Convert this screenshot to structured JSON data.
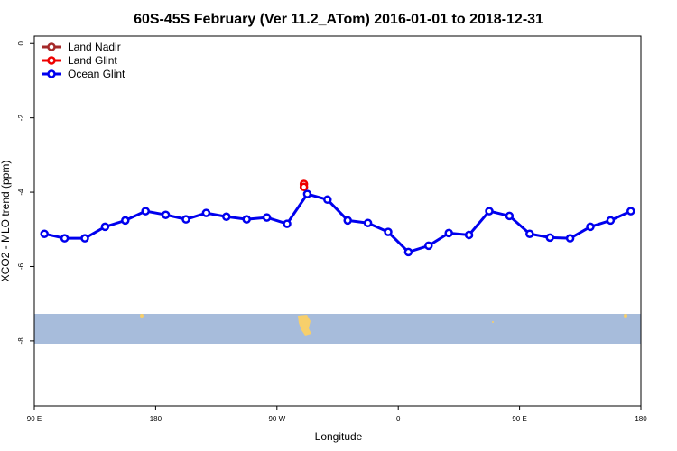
{
  "chart_data": {
    "type": "line",
    "title": "60S-45S February (Ver 11.2_ATom)   2016-01-01 to 2018-12-31",
    "x_label": "Longitude",
    "y_label": "XCO2 - MLO trend (ppm)",
    "xlim": [
      90,
      540
    ],
    "ylim": [
      -9.75,
      0.2
    ],
    "xticks": [
      {
        "value": 90,
        "label": "90 E"
      },
      180,
      {
        "value": 270,
        "label": "90 W"
      },
      {
        "value": 360,
        "label": "0"
      },
      {
        "value": 450,
        "label": "90 E"
      },
      {
        "value": 540,
        "label": "180"
      }
    ],
    "yticks": [
      0,
      -2,
      -4,
      -6,
      -8
    ],
    "legend": "top-left",
    "series": [
      {
        "name": "Land Nadir",
        "color": "#a52a2a",
        "x": [],
        "values": []
      },
      {
        "name": "Land Glint",
        "color": "#ee0000",
        "x": [
          290,
          290
        ],
        "values": [
          -3.78,
          -3.86
        ]
      },
      {
        "name": "Ocean Glint",
        "color": "#0000ee",
        "x": [
          97.5,
          112.5,
          127.5,
          142.5,
          157.5,
          172.5,
          187.5,
          202.5,
          217.5,
          232.5,
          247.5,
          262.5,
          277.5,
          292.5,
          307.5,
          322.5,
          337.5,
          352.5,
          367.5,
          382.5,
          397.5,
          412.5,
          427.5,
          442.5,
          457.5,
          472.5,
          487.5,
          502.5,
          517.5,
          532.5
        ],
        "values": [
          -5.12,
          -5.24,
          -5.24,
          -4.93,
          -4.76,
          -4.51,
          -4.61,
          -4.73,
          -4.56,
          -4.66,
          -4.73,
          -4.68,
          -4.85,
          -4.05,
          -4.2,
          -4.76,
          -4.83,
          -5.07,
          -5.61,
          -5.44,
          -5.1,
          -5.15,
          -4.51,
          -4.64,
          -5.12,
          -5.22,
          -5.24,
          -4.93,
          -4.76,
          -4.51
        ]
      }
    ]
  }
}
